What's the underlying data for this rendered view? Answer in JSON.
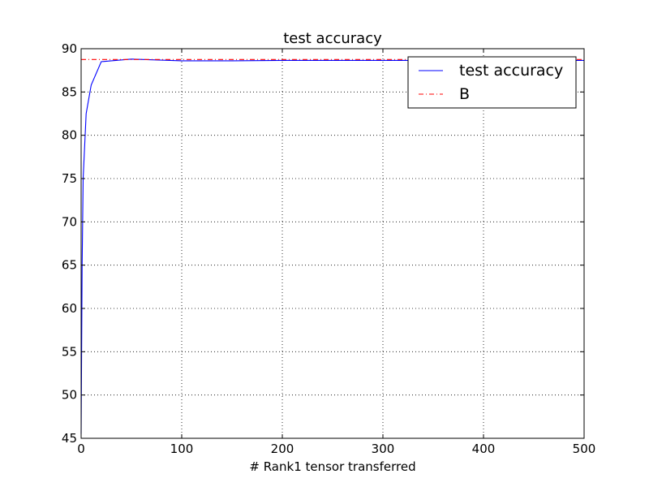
{
  "chart_data": {
    "type": "line",
    "title": "test accuracy",
    "xlabel": "# Rank1 tensor transferred",
    "ylabel": "",
    "xlim": [
      0,
      500
    ],
    "ylim": [
      45,
      90
    ],
    "xticks": [
      0,
      100,
      200,
      300,
      400,
      500
    ],
    "yticks": [
      45,
      50,
      55,
      60,
      65,
      70,
      75,
      80,
      85,
      90
    ],
    "grid": true,
    "legend_position": "top-right",
    "series": [
      {
        "name": "test accuracy",
        "color": "#0000ff",
        "style": "solid",
        "x": [
          0,
          1,
          2,
          5,
          10,
          20,
          50,
          100,
          150,
          200,
          250,
          300,
          350,
          400,
          450,
          500
        ],
        "y": [
          45.5,
          65.0,
          75.0,
          82.5,
          85.8,
          88.5,
          88.8,
          88.6,
          88.6,
          88.65,
          88.65,
          88.65,
          88.65,
          88.65,
          88.65,
          88.65
        ]
      },
      {
        "name": "B",
        "color": "#ff0000",
        "style": "dashdot",
        "x": [
          0,
          500
        ],
        "y": [
          88.75,
          88.75
        ]
      }
    ]
  }
}
